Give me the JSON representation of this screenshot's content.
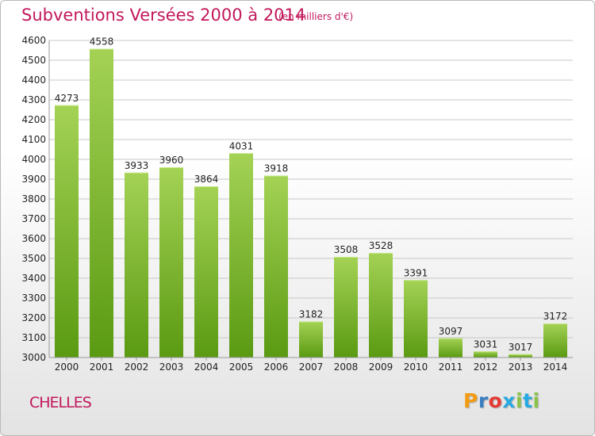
{
  "header": {
    "title": "Subventions Versées 2000 à 2014",
    "unit": "(en milliers d'€)"
  },
  "footer": {
    "city": "CHELLES",
    "logo": "Proxiti",
    "logo_colors": [
      "#f39c12",
      "#3a7fc1",
      "#e53935",
      "#27a9e1",
      "#8bc34a",
      "#27a9e1",
      "#8bc34a"
    ]
  },
  "colors": {
    "title": "#c2185b",
    "bar_top": "#a4d255",
    "bar_bottom": "#5a9a12",
    "grid": "#c8c8c8"
  },
  "chart_data": {
    "type": "bar",
    "categories": [
      "2000",
      "2001",
      "2002",
      "2003",
      "2004",
      "2005",
      "2006",
      "2007",
      "2008",
      "2009",
      "2010",
      "2011",
      "2012",
      "2013",
      "2014"
    ],
    "values": [
      4273,
      4558,
      3933,
      3960,
      3864,
      4031,
      3918,
      3182,
      3508,
      3528,
      3391,
      3097,
      3031,
      3017,
      3172
    ],
    "title": "Subventions Versées 2000 à 2014",
    "ylim": [
      3000,
      4600
    ],
    "yticks": [
      3000,
      3100,
      3200,
      3300,
      3400,
      3500,
      3600,
      3700,
      3800,
      3900,
      4000,
      4100,
      4200,
      4300,
      4400,
      4500,
      4600
    ],
    "grid": true,
    "data_labels": true
  }
}
